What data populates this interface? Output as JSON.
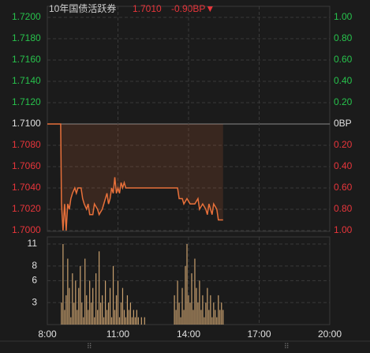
{
  "chart_data": [
    {
      "type": "line",
      "title": "10年国债活跃券",
      "last_price": "1.7010",
      "change": "-0.90BP▼",
      "up_color": "#27c24c",
      "down_color": "#e8353b",
      "base_color": "#e0e0e0",
      "ylim": [
        1.7,
        1.72
      ],
      "yticks": [
        {
          "value": 1.72,
          "label": "1.7200"
        },
        {
          "value": 1.718,
          "label": "1.7180"
        },
        {
          "value": 1.716,
          "label": "1.7160"
        },
        {
          "value": 1.714,
          "label": "1.7140"
        },
        {
          "value": 1.712,
          "label": "1.7120"
        },
        {
          "value": 1.71,
          "label": "1.7100"
        },
        {
          "value": 1.708,
          "label": "1.7080"
        },
        {
          "value": 1.706,
          "label": "1.7060"
        },
        {
          "value": 1.704,
          "label": "1.7040"
        },
        {
          "value": 1.702,
          "label": "1.7020"
        },
        {
          "value": 1.7,
          "label": "1.7000"
        }
      ],
      "base_value": 1.71,
      "y2lim": [
        -1,
        1
      ],
      "y2ticks": [
        {
          "value": 1,
          "label": "1.00"
        },
        {
          "value": 0.8,
          "label": "0.80"
        },
        {
          "value": 0.6,
          "label": "0.60"
        },
        {
          "value": 0.4,
          "label": "0.40"
        },
        {
          "value": 0.2,
          "label": "0.20"
        },
        {
          "value": 0,
          "label": "0BP"
        },
        {
          "value": -0.2,
          "label": "0.20"
        },
        {
          "value": -0.4,
          "label": "0.40"
        },
        {
          "value": -0.6,
          "label": "0.60"
        },
        {
          "value": -0.8,
          "label": "0.80"
        },
        {
          "value": -1,
          "label": "1.00"
        }
      ],
      "xlim": [
        480,
        1200
      ],
      "series": [
        {
          "color": "#e8703a",
          "x": [
            480,
            514,
            516,
            520,
            524,
            528,
            532,
            536,
            540,
            544,
            550,
            554,
            558,
            566,
            570,
            574,
            580,
            584,
            588,
            596,
            600,
            608,
            612,
            620,
            624,
            628,
            632,
            636,
            640,
            644,
            648,
            652,
            656,
            660,
            664,
            668,
            672,
            676,
            680,
            812,
            816,
            824,
            828,
            836,
            844,
            856,
            864,
            868,
            876,
            884,
            888,
            892,
            900,
            904,
            912,
            916,
            928
          ],
          "values": [
            1.71,
            1.71,
            1.7025,
            1.7,
            1.7025,
            1.7,
            1.7025,
            1.702,
            1.703,
            1.7035,
            1.704,
            1.7035,
            1.704,
            1.704,
            1.703,
            1.7025,
            1.702,
            1.7025,
            1.7015,
            1.7015,
            1.7025,
            1.702,
            1.7015,
            1.702,
            1.7025,
            1.703,
            1.7035,
            1.7025,
            1.703,
            1.704,
            1.7035,
            1.705,
            1.7035,
            1.704,
            1.7035,
            1.7045,
            1.704,
            1.7045,
            1.704,
            1.704,
            1.703,
            1.703,
            1.7025,
            1.703,
            1.7025,
            1.7025,
            1.703,
            1.702,
            1.7025,
            1.702,
            1.7015,
            1.7025,
            1.7015,
            1.7025,
            1.702,
            1.701,
            1.701
          ]
        }
      ],
      "grid": true
    },
    {
      "type": "bar",
      "ylim": [
        0,
        11
      ],
      "yticks": [
        11,
        8,
        6,
        3
      ],
      "xlim": [
        480,
        1200
      ],
      "xticks": [
        {
          "value": 480,
          "label": "8:00"
        },
        {
          "value": 660,
          "label": "11:00"
        },
        {
          "value": 840,
          "label": "14:00"
        },
        {
          "value": 1020,
          "label": "17:00"
        },
        {
          "value": 1200,
          "label": "20:00"
        }
      ],
      "color": "#c9a06e",
      "x": [
        516,
        520,
        524,
        528,
        532,
        536,
        540,
        544,
        548,
        552,
        556,
        560,
        564,
        568,
        572,
        576,
        580,
        584,
        588,
        592,
        596,
        600,
        604,
        608,
        612,
        616,
        620,
        624,
        628,
        632,
        636,
        640,
        644,
        648,
        652,
        656,
        660,
        664,
        668,
        672,
        676,
        680,
        684,
        688,
        692,
        696,
        700,
        704,
        708,
        712,
        716,
        720,
        724,
        728,
        804,
        808,
        812,
        816,
        820,
        824,
        828,
        832,
        836,
        840,
        844,
        848,
        852,
        856,
        860,
        864,
        868,
        872,
        876,
        880,
        884,
        888,
        892,
        896,
        900,
        904,
        908,
        912,
        916,
        920,
        924,
        928
      ],
      "values": [
        3,
        11,
        2,
        4,
        9,
        5,
        1,
        7,
        3,
        6,
        2,
        5,
        8,
        3,
        1,
        9,
        4,
        2,
        6,
        3,
        5,
        1,
        7,
        2,
        10,
        3,
        4,
        1,
        6,
        2,
        3,
        5,
        1,
        8,
        2,
        4,
        6,
        1,
        3,
        5,
        2,
        1,
        4,
        2,
        3,
        1,
        2,
        1,
        2,
        1,
        0,
        1,
        0,
        1,
        4,
        2,
        6,
        3,
        1,
        5,
        2,
        8,
        11,
        4,
        3,
        7,
        2,
        9,
        5,
        3,
        6,
        2,
        4,
        1,
        3,
        5,
        2,
        4,
        1,
        3,
        2,
        1,
        4,
        2,
        3,
        2
      ],
      "grid": true
    }
  ]
}
